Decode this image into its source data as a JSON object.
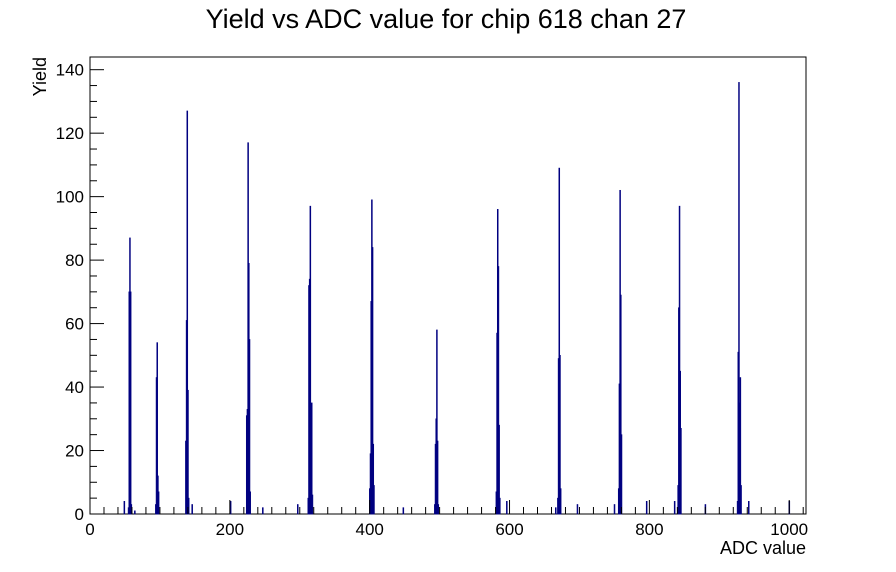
{
  "chart_data": {
    "type": "bar",
    "title": "Yield vs ADC value for chip 618 chan 27",
    "xlabel": "ADC value",
    "ylabel": "Yield",
    "xlim": [
      0,
      1024
    ],
    "ylim": [
      0,
      144
    ],
    "x_ticks": [
      0,
      200,
      400,
      600,
      800,
      1000
    ],
    "y_ticks": [
      0,
      20,
      40,
      60,
      80,
      100,
      120,
      140
    ],
    "grid": false,
    "legend": "none",
    "series_color": "#000080",
    "series": [
      {
        "bins": [
          {
            "x": 49,
            "y": 4
          },
          {
            "x": 55,
            "y": 2
          },
          {
            "x": 56,
            "y": 70
          },
          {
            "x": 57,
            "y": 87
          },
          {
            "x": 58,
            "y": 70
          },
          {
            "x": 59,
            "y": 3
          },
          {
            "x": 64,
            "y": 1
          },
          {
            "x": 94,
            "y": 3
          },
          {
            "x": 95,
            "y": 43
          },
          {
            "x": 96,
            "y": 54
          },
          {
            "x": 97,
            "y": 12
          },
          {
            "x": 98,
            "y": 7
          },
          {
            "x": 137,
            "y": 23
          },
          {
            "x": 138,
            "y": 61
          },
          {
            "x": 139,
            "y": 127
          },
          {
            "x": 140,
            "y": 39
          },
          {
            "x": 141,
            "y": 5
          },
          {
            "x": 146,
            "y": 3
          },
          {
            "x": 201,
            "y": 4
          },
          {
            "x": 224,
            "y": 31
          },
          {
            "x": 225,
            "y": 33
          },
          {
            "x": 226,
            "y": 117
          },
          {
            "x": 227,
            "y": 79
          },
          {
            "x": 228,
            "y": 55
          },
          {
            "x": 229,
            "y": 7
          },
          {
            "x": 247,
            "y": 2
          },
          {
            "x": 297,
            "y": 3
          },
          {
            "x": 312,
            "y": 5
          },
          {
            "x": 313,
            "y": 72
          },
          {
            "x": 314,
            "y": 74
          },
          {
            "x": 315,
            "y": 97
          },
          {
            "x": 316,
            "y": 26
          },
          {
            "x": 317,
            "y": 35
          },
          {
            "x": 318,
            "y": 6
          },
          {
            "x": 400,
            "y": 8
          },
          {
            "x": 401,
            "y": 19
          },
          {
            "x": 402,
            "y": 67
          },
          {
            "x": 403,
            "y": 99
          },
          {
            "x": 404,
            "y": 84
          },
          {
            "x": 405,
            "y": 22
          },
          {
            "x": 406,
            "y": 9
          },
          {
            "x": 448,
            "y": 2
          },
          {
            "x": 493,
            "y": 3
          },
          {
            "x": 494,
            "y": 22
          },
          {
            "x": 495,
            "y": 30
          },
          {
            "x": 496,
            "y": 58
          },
          {
            "x": 497,
            "y": 23
          },
          {
            "x": 498,
            "y": 3
          },
          {
            "x": 581,
            "y": 7
          },
          {
            "x": 582,
            "y": 57
          },
          {
            "x": 583,
            "y": 96
          },
          {
            "x": 584,
            "y": 78
          },
          {
            "x": 585,
            "y": 28
          },
          {
            "x": 586,
            "y": 5
          },
          {
            "x": 596,
            "y": 4
          },
          {
            "x": 666,
            "y": 2
          },
          {
            "x": 669,
            "y": 5
          },
          {
            "x": 670,
            "y": 49
          },
          {
            "x": 671,
            "y": 109
          },
          {
            "x": 672,
            "y": 50
          },
          {
            "x": 673,
            "y": 8
          },
          {
            "x": 697,
            "y": 3
          },
          {
            "x": 750,
            "y": 3
          },
          {
            "x": 756,
            "y": 8
          },
          {
            "x": 757,
            "y": 41
          },
          {
            "x": 758,
            "y": 102
          },
          {
            "x": 759,
            "y": 69
          },
          {
            "x": 760,
            "y": 25
          },
          {
            "x": 796,
            "y": 4
          },
          {
            "x": 836,
            "y": 4
          },
          {
            "x": 841,
            "y": 9
          },
          {
            "x": 842,
            "y": 65
          },
          {
            "x": 843,
            "y": 97
          },
          {
            "x": 844,
            "y": 45
          },
          {
            "x": 845,
            "y": 27
          },
          {
            "x": 880,
            "y": 3
          },
          {
            "x": 926,
            "y": 4
          },
          {
            "x": 927,
            "y": 51
          },
          {
            "x": 928,
            "y": 136
          },
          {
            "x": 929,
            "y": 35
          },
          {
            "x": 930,
            "y": 43
          },
          {
            "x": 931,
            "y": 9
          },
          {
            "x": 942,
            "y": 4
          },
          {
            "x": 1000,
            "y": 4
          }
        ]
      }
    ]
  }
}
